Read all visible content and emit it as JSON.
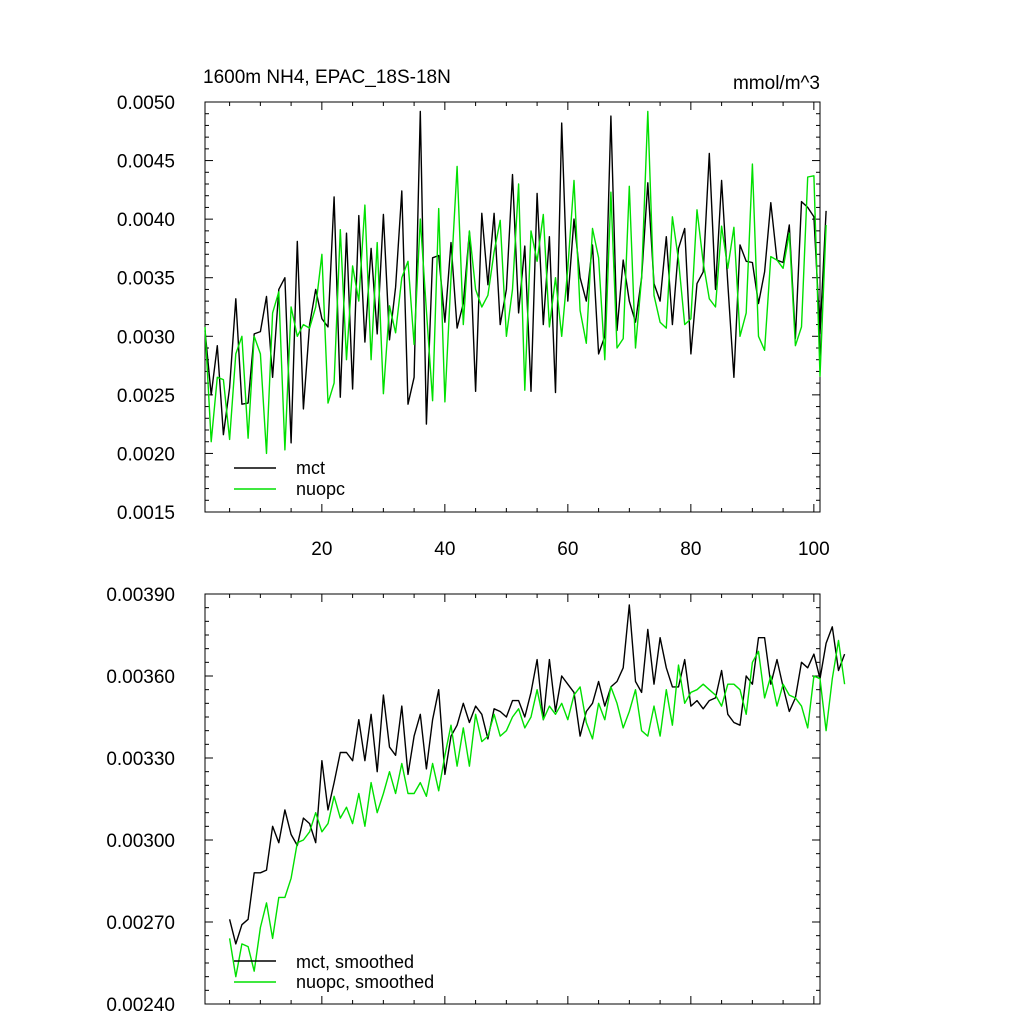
{
  "chart_data": [
    {
      "type": "line",
      "title": "1600m NH4, EPAC_18S-18N",
      "units": "mmol/m^3",
      "xlim": [
        1,
        101
      ],
      "ylim": [
        0.0015,
        0.005
      ],
      "xticks": [
        20,
        40,
        60,
        80,
        100
      ],
      "xtick_labels": [
        "20",
        "40",
        "60",
        "80",
        "100"
      ],
      "yticks": [
        0.0015,
        0.002,
        0.0025,
        0.003,
        0.0035,
        0.004,
        0.0045,
        0.005
      ],
      "ytick_labels": [
        "0.0015",
        "0.0020",
        "0.0025",
        "0.0030",
        "0.0035",
        "0.0040",
        "0.0045",
        "0.0050"
      ],
      "legend_position": "bottom-left",
      "series": [
        {
          "name": "mct",
          "color": "#000000",
          "x_start": 1,
          "values": [
            0.00305,
            0.0025,
            0.00292,
            0.00216,
            0.00256,
            0.00332,
            0.00242,
            0.00243,
            0.00302,
            0.00304,
            0.00334,
            0.00265,
            0.0034,
            0.0035,
            0.00209,
            0.00381,
            0.00238,
            0.0031,
            0.0034,
            0.00315,
            0.00308,
            0.00419,
            0.00248,
            0.00388,
            0.00255,
            0.00403,
            0.00295,
            0.00375,
            0.00302,
            0.00404,
            0.00297,
            0.00342,
            0.00424,
            0.00242,
            0.00265,
            0.00492,
            0.00225,
            0.00367,
            0.00369,
            0.00312,
            0.0038,
            0.00307,
            0.00328,
            0.00389,
            0.00253,
            0.00405,
            0.00344,
            0.00405,
            0.0031,
            0.0034,
            0.00438,
            0.0032,
            0.00377,
            0.00253,
            0.00422,
            0.0031,
            0.00385,
            0.00252,
            0.00482,
            0.0033,
            0.004,
            0.0035,
            0.0033,
            0.00378,
            0.00285,
            0.003,
            0.00488,
            0.00305,
            0.00365,
            0.0033,
            0.00312,
            0.0035,
            0.00431,
            0.00345,
            0.0033,
            0.00385,
            0.0031,
            0.00375,
            0.00392,
            0.00285,
            0.00345,
            0.00355,
            0.00456,
            0.0034,
            0.00433,
            0.00345,
            0.00265,
            0.00378,
            0.00364,
            0.00363,
            0.00328,
            0.00355,
            0.00414,
            0.00365,
            0.00363,
            0.00395,
            0.00298,
            0.00415,
            0.0041,
            0.00402,
            0.00302,
            0.00407
          ]
        },
        {
          "name": "nuopc",
          "color": "#00e000",
          "x_start": 1,
          "values": [
            0.00308,
            0.0021,
            0.00265,
            0.00263,
            0.00212,
            0.00285,
            0.003,
            0.00213,
            0.003,
            0.00285,
            0.002,
            0.0032,
            0.00338,
            0.00203,
            0.00325,
            0.003,
            0.0031,
            0.00307,
            0.00325,
            0.0037,
            0.00243,
            0.0026,
            0.00391,
            0.0028,
            0.0036,
            0.0033,
            0.00412,
            0.0028,
            0.0038,
            0.00251,
            0.00326,
            0.00303,
            0.0035,
            0.00364,
            0.00293,
            0.004,
            0.00322,
            0.00245,
            0.00409,
            0.00244,
            0.0035,
            0.00445,
            0.0031,
            0.0039,
            0.0034,
            0.00325,
            0.00335,
            0.00372,
            0.00399,
            0.003,
            0.0034,
            0.0043,
            0.00254,
            0.0039,
            0.00364,
            0.00404,
            0.00308,
            0.0035,
            0.003,
            0.00358,
            0.00433,
            0.00322,
            0.00294,
            0.00392,
            0.00367,
            0.0028,
            0.00423,
            0.0029,
            0.00298,
            0.00428,
            0.0029,
            0.0035,
            0.00492,
            0.00335,
            0.00312,
            0.00307,
            0.00402,
            0.00365,
            0.0031,
            0.00315,
            0.00408,
            0.00363,
            0.00332,
            0.00325,
            0.00394,
            0.00358,
            0.00393,
            0.003,
            0.0032,
            0.00447,
            0.003,
            0.00288,
            0.00368,
            0.00365,
            0.00358,
            0.00388,
            0.00292,
            0.00308,
            0.00436,
            0.00437,
            0.00266,
            0.00395
          ]
        }
      ]
    },
    {
      "type": "line",
      "title": "",
      "xlim": [
        1,
        101
      ],
      "ylim": [
        0.0024,
        0.0039
      ],
      "xticks": [
        20,
        40,
        60,
        80,
        100
      ],
      "xtick_labels": [
        "",
        "",
        "",
        "",
        ""
      ],
      "yticks": [
        0.0024,
        0.0027,
        0.003,
        0.0033,
        0.0036,
        0.0039
      ],
      "ytick_labels": [
        "0.00240",
        "0.00270",
        "0.00300",
        "0.00330",
        "0.00360",
        "0.00390"
      ],
      "legend_position": "bottom-left",
      "series": [
        {
          "name": "mct, smoothed",
          "color": "#000000",
          "x_start": 5,
          "values": [
            0.00271,
            0.00262,
            0.00269,
            0.00271,
            0.00288,
            0.00288,
            0.00289,
            0.00305,
            0.00299,
            0.00311,
            0.00302,
            0.00298,
            0.00308,
            0.00306,
            0.00299,
            0.00329,
            0.00311,
            0.00321,
            0.00332,
            0.00332,
            0.00329,
            0.00344,
            0.00329,
            0.00346,
            0.00325,
            0.00353,
            0.00334,
            0.00331,
            0.00349,
            0.00324,
            0.00338,
            0.00346,
            0.00326,
            0.00344,
            0.00355,
            0.00324,
            0.00338,
            0.00342,
            0.0035,
            0.00343,
            0.00349,
            0.00346,
            0.00337,
            0.00348,
            0.00347,
            0.00345,
            0.00351,
            0.00351,
            0.00345,
            0.00354,
            0.00366,
            0.00344,
            0.00366,
            0.00347,
            0.0036,
            0.00357,
            0.00354,
            0.00338,
            0.00347,
            0.0035,
            0.00358,
            0.00349,
            0.00356,
            0.00358,
            0.00363,
            0.00386,
            0.00358,
            0.00354,
            0.00377,
            0.00357,
            0.00374,
            0.00363,
            0.00356,
            0.00356,
            0.00366,
            0.00349,
            0.00351,
            0.00348,
            0.00351,
            0.00352,
            0.00362,
            0.00346,
            0.00343,
            0.00342,
            0.0036,
            0.00357,
            0.00374,
            0.00374,
            0.00357,
            0.00366,
            0.00356,
            0.00347,
            0.00352,
            0.00365,
            0.00363,
            0.00368,
            0.00359,
            0.00372,
            0.00378,
            0.00362,
            0.00368
          ]
        },
        {
          "name": "nuopc, smoothed",
          "color": "#00e000",
          "x_start": 5,
          "values": [
            0.00264,
            0.0025,
            0.00262,
            0.00261,
            0.00252,
            0.00268,
            0.00277,
            0.00264,
            0.00279,
            0.00279,
            0.00286,
            0.00299,
            0.003,
            0.00303,
            0.0031,
            0.00303,
            0.00306,
            0.00316,
            0.00308,
            0.00312,
            0.00306,
            0.00317,
            0.00305,
            0.00321,
            0.0031,
            0.00317,
            0.00325,
            0.00317,
            0.00328,
            0.00317,
            0.00317,
            0.00321,
            0.00316,
            0.00328,
            0.00318,
            0.00331,
            0.00342,
            0.00327,
            0.00341,
            0.00327,
            0.00346,
            0.00336,
            0.00338,
            0.00346,
            0.00338,
            0.0034,
            0.00345,
            0.00348,
            0.00341,
            0.00345,
            0.00355,
            0.00344,
            0.00349,
            0.00346,
            0.0035,
            0.00344,
            0.00353,
            0.00356,
            0.00343,
            0.00337,
            0.0035,
            0.00344,
            0.00356,
            0.0035,
            0.00341,
            0.00347,
            0.00355,
            0.0034,
            0.00338,
            0.00349,
            0.00338,
            0.00355,
            0.00342,
            0.00364,
            0.0035,
            0.00354,
            0.00355,
            0.00357,
            0.00355,
            0.00353,
            0.00349,
            0.00357,
            0.00357,
            0.00355,
            0.00346,
            0.00365,
            0.00369,
            0.00352,
            0.0036,
            0.00349,
            0.00357,
            0.00353,
            0.00352,
            0.00349,
            0.00341,
            0.0036,
            0.00359,
            0.0034,
            0.00359,
            0.00373,
            0.00357
          ]
        }
      ]
    }
  ]
}
